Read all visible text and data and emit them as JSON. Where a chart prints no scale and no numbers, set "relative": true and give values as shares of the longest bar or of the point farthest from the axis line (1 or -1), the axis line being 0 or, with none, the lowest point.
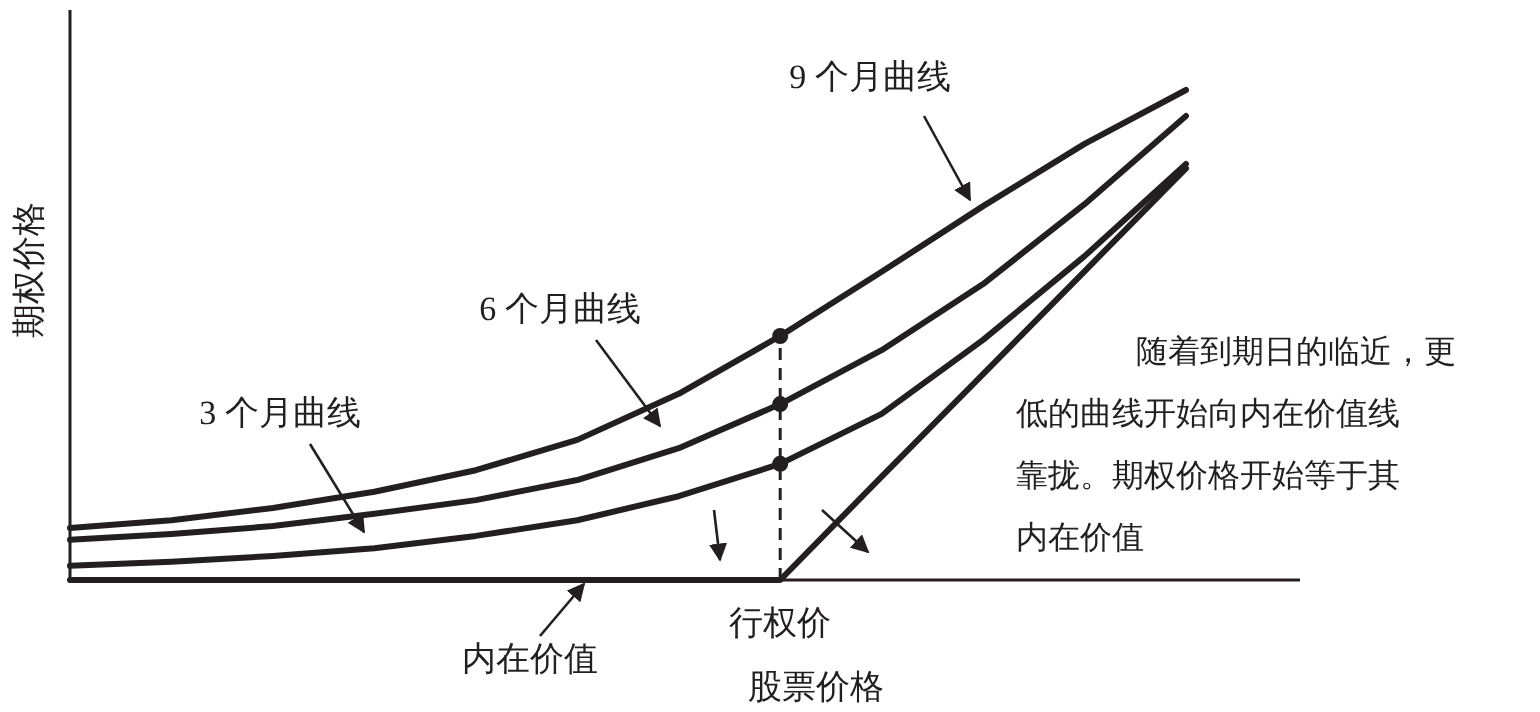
{
  "chart_data": {
    "type": "line",
    "relative": true,
    "ylabel": "期权价格",
    "xlabel": "股票价格",
    "categories": [
      null,
      null,
      null,
      null,
      null,
      null,
      null,
      null,
      null,
      null,
      null,
      null
    ],
    "series": [
      {
        "color": "#231f20",
        "values": [
          0.106,
          0.122,
          0.147,
          0.18,
          0.224,
          0.286,
          0.38,
          0.498,
          0.629,
          0.763,
          0.89,
          1
        ]
      },
      {
        "color": "#231f20",
        "values": [
          0.082,
          0.094,
          0.11,
          0.135,
          0.163,
          0.204,
          0.269,
          0.359,
          0.469,
          0.604,
          0.767,
          0.947
        ]
      },
      {
        "color": "#231f20",
        "values": [
          0.029,
          0.037,
          0.049,
          0.065,
          0.09,
          0.122,
          0.171,
          0.237,
          0.339,
          0.49,
          0.661,
          0.849
        ]
      },
      {
        "color": "#231f20",
        "values": [
          0,
          0,
          0,
          0,
          0,
          0,
          0,
          0,
          0.211,
          0.42,
          0.63,
          0.84
        ]
      }
    ],
    "annotations": [
      "9 个月曲线",
      "6 个月曲线",
      "3 个月曲线",
      "内在价值",
      "行权价",
      "随着到期日的临近，更低的曲线开始向内在价值线靠拢。期权价格开始等于其内在价值"
    ],
    "marker": "none"
  }
}
